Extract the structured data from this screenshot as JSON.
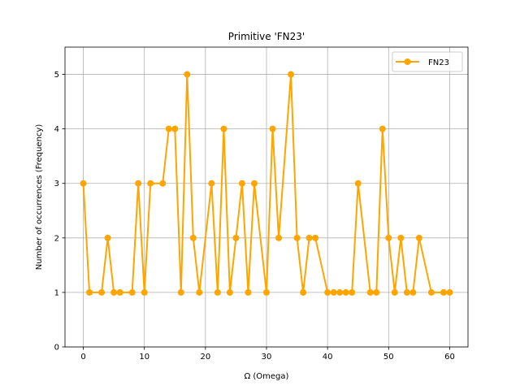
{
  "chart_data": {
    "type": "line",
    "title": "Primitive 'FN23'",
    "xlabel": "Ω (Omega)",
    "ylabel": "Number of occurrences (Frequency)",
    "xlim": [
      -3,
      63
    ],
    "ylim": [
      0,
      5.5
    ],
    "xticks": [
      0,
      10,
      20,
      30,
      40,
      50,
      60
    ],
    "yticks": [
      0,
      1,
      2,
      3,
      4,
      5
    ],
    "grid": true,
    "legend_position": "top-right",
    "series": [
      {
        "name": "FN23",
        "color": "#FFA500",
        "marker": "circle",
        "x": [
          0,
          1,
          3,
          4,
          5,
          6,
          8,
          9,
          10,
          11,
          13,
          14,
          15,
          16,
          17,
          18,
          19,
          21,
          22,
          23,
          24,
          25,
          26,
          27,
          28,
          30,
          31,
          32,
          34,
          35,
          36,
          37,
          38,
          40,
          41,
          42,
          43,
          44,
          45,
          47,
          48,
          49,
          50,
          51,
          52,
          53,
          54,
          55,
          57,
          59,
          60
        ],
        "y": [
          3,
          1,
          1,
          2,
          1,
          1,
          1,
          3,
          1,
          3,
          3,
          4,
          4,
          1,
          5,
          2,
          1,
          3,
          1,
          4,
          1,
          2,
          3,
          1,
          3,
          1,
          4,
          2,
          5,
          2,
          1,
          2,
          2,
          1,
          1,
          1,
          1,
          1,
          3,
          1,
          1,
          4,
          2,
          1,
          2,
          1,
          1,
          2,
          1,
          1,
          1
        ]
      }
    ]
  }
}
